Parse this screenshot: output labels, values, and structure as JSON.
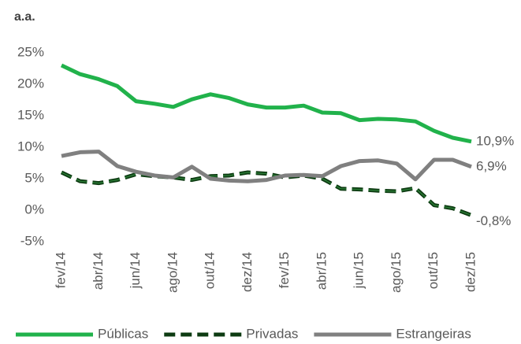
{
  "chart_data": {
    "type": "line",
    "ylabel": "a.a.",
    "categories": [
      "fev/14",
      null,
      "abr/14",
      null,
      "jun/14",
      null,
      "ago/14",
      null,
      "out/14",
      null,
      "dez/14",
      null,
      "fev/15",
      null,
      "abr/15",
      null,
      "jun/15",
      null,
      "ago/15",
      null,
      "out/15",
      null,
      "dez/15"
    ],
    "series": [
      {
        "name": "Públicas",
        "color": "#21b24b",
        "style": "solid",
        "values": [
          23.0,
          21.6,
          20.8,
          19.7,
          17.3,
          16.9,
          16.4,
          17.6,
          18.4,
          17.8,
          16.8,
          16.3,
          16.3,
          16.6,
          15.5,
          15.4,
          14.3,
          14.5,
          14.4,
          14.1,
          12.6,
          11.5,
          10.9
        ],
        "value_labels": [
          null,
          null,
          null,
          null,
          null,
          null,
          null,
          null,
          null,
          null,
          null,
          null,
          null,
          null,
          null,
          null,
          null,
          null,
          null,
          null,
          null,
          null,
          "10,9%"
        ]
      },
      {
        "name": "Privadas",
        "color": "#0d3b12",
        "style": "dashed",
        "values": [
          6.0,
          4.6,
          4.3,
          4.8,
          5.7,
          5.4,
          5.2,
          4.8,
          5.4,
          5.5,
          6.0,
          5.8,
          5.2,
          5.5,
          5.0,
          3.4,
          3.3,
          3.1,
          3.0,
          3.5,
          0.8,
          0.3,
          -0.8
        ],
        "value_labels": [
          null,
          null,
          null,
          null,
          null,
          null,
          null,
          null,
          null,
          null,
          null,
          null,
          null,
          null,
          null,
          null,
          null,
          null,
          null,
          null,
          null,
          null,
          "-0,8%"
        ]
      },
      {
        "name": "Estrangeiras",
        "color": "#808080",
        "style": "solid",
        "values": [
          8.6,
          9.2,
          9.3,
          7.0,
          6.1,
          5.5,
          5.2,
          6.9,
          5.0,
          4.7,
          4.6,
          4.8,
          5.5,
          5.6,
          5.4,
          7.0,
          7.8,
          7.9,
          7.4,
          4.9,
          8.0,
          8.0,
          6.9
        ],
        "value_labels": [
          null,
          null,
          null,
          null,
          null,
          null,
          null,
          null,
          null,
          null,
          null,
          null,
          null,
          null,
          null,
          null,
          null,
          null,
          null,
          null,
          null,
          null,
          "6,9%"
        ]
      }
    ],
    "ylim": [
      -5,
      25
    ],
    "yticks": [
      {
        "value": -5,
        "label": "-5%"
      },
      {
        "value": 0,
        "label": "0%"
      },
      {
        "value": 5,
        "label": "5%"
      },
      {
        "value": 10,
        "label": "10%"
      },
      {
        "value": 15,
        "label": "15%"
      },
      {
        "value": 20,
        "label": "20%"
      },
      {
        "value": 25,
        "label": "25%"
      }
    ],
    "grid": false,
    "legend": "bottom"
  }
}
